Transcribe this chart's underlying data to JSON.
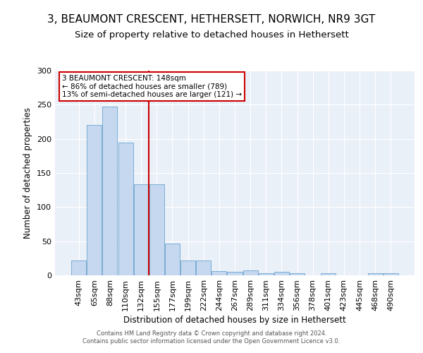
{
  "title": "3, BEAUMONT CRESCENT, HETHERSETT, NORWICH, NR9 3GT",
  "subtitle": "Size of property relative to detached houses in Hethersett",
  "xlabel": "Distribution of detached houses by size in Hethersett",
  "ylabel": "Number of detached properties",
  "categories": [
    "43sqm",
    "65sqm",
    "88sqm",
    "110sqm",
    "132sqm",
    "155sqm",
    "177sqm",
    "199sqm",
    "222sqm",
    "244sqm",
    "267sqm",
    "289sqm",
    "311sqm",
    "334sqm",
    "356sqm",
    "378sqm",
    "401sqm",
    "423sqm",
    "445sqm",
    "468sqm",
    "490sqm"
  ],
  "values": [
    22,
    220,
    247,
    195,
    133,
    133,
    47,
    22,
    22,
    6,
    5,
    7,
    3,
    5,
    3,
    0,
    3,
    0,
    0,
    3,
    3
  ],
  "bar_color": "#c5d8ef",
  "bar_edge_color": "#7aadd4",
  "red_line_index": 5,
  "red_line_color": "#cc0000",
  "annotation_text": "3 BEAUMONT CRESCENT: 148sqm\n← 86% of detached houses are smaller (789)\n13% of semi-detached houses are larger (121) →",
  "annotation_box_color": "white",
  "annotation_box_edge_color": "#cc0000",
  "ylim": [
    0,
    300
  ],
  "yticks": [
    0,
    50,
    100,
    150,
    200,
    250,
    300
  ],
  "footer": "Contains HM Land Registry data © Crown copyright and database right 2024.\nContains public sector information licensed under the Open Government Licence v3.0.",
  "bg_color": "#eaf0f8",
  "title_fontsize": 11,
  "subtitle_fontsize": 9.5
}
